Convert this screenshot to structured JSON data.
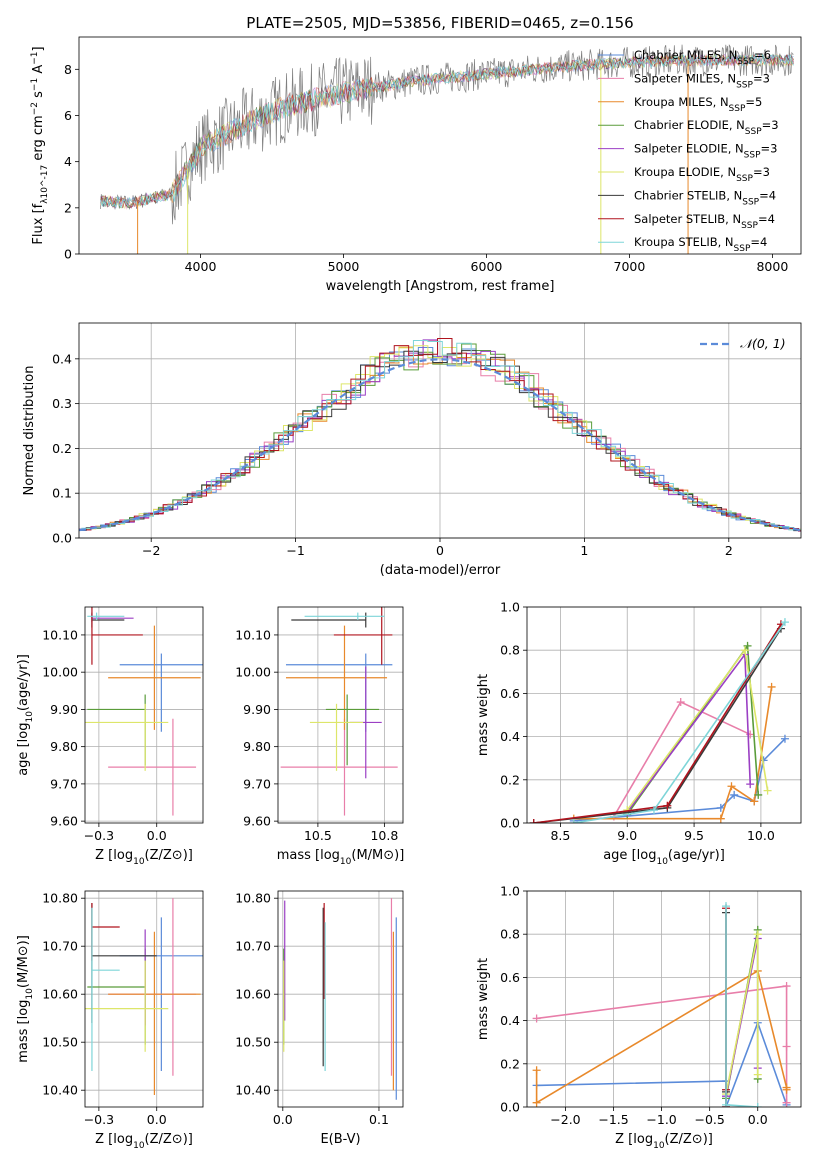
{
  "title": "PLATE=2505, MJD=53856, FIBERID=0465, z=0.156",
  "colors": {
    "Chabrier MILES": "#5b8bd9",
    "Salpeter MILES": "#e87ea9",
    "Kroupa MILES": "#e8892b",
    "Chabrier ELODIE": "#5a9c3a",
    "Salpeter ELODIE": "#9b3fc4",
    "Kroupa ELODIE": "#dde66a",
    "Chabrier STELIB": "#3a3a3a",
    "Salpeter STELIB": "#b0141e",
    "Kroupa STELIB": "#7ed5d8",
    "data": "#7f7f7f",
    "normal": "#5b8bd9"
  },
  "chart_data": [
    {
      "id": "spectrum",
      "type": "line",
      "xlabel": "wavelength [Angstrom, rest frame]",
      "ylabel": "Flux [f_λ10^-17 erg cm^-2 s^-1 A^-1]",
      "xlim": [
        3150,
        8200
      ],
      "ylim": [
        0,
        9.4
      ],
      "xticks": [
        4000,
        5000,
        6000,
        7000,
        8000
      ],
      "yticks": [
        0,
        2,
        4,
        6,
        8
      ],
      "legend_position": "top-right",
      "series": [
        {
          "name": "Chabrier MILES",
          "nssp": "6"
        },
        {
          "name": "Salpeter MILES",
          "nssp": "3"
        },
        {
          "name": "Kroupa MILES",
          "nssp": "5"
        },
        {
          "name": "Chabrier ELODIE",
          "nssp": "3"
        },
        {
          "name": "Salpeter ELODIE",
          "nssp": "3"
        },
        {
          "name": "Kroupa ELODIE",
          "nssp": "3"
        },
        {
          "name": "Chabrier STELIB",
          "nssp": "4"
        },
        {
          "name": "Salpeter STELIB",
          "nssp": "4"
        },
        {
          "name": "Kroupa STELIB",
          "nssp": "4"
        }
      ],
      "continuum": {
        "x": [
          3300,
          3500,
          3800,
          4000,
          4300,
          4600,
          5000,
          5500,
          6000,
          6500,
          7000,
          7500,
          8000,
          8200
        ],
        "y": [
          2.3,
          2.2,
          2.6,
          4.6,
          5.6,
          6.4,
          7.0,
          7.5,
          7.8,
          8.1,
          8.3,
          8.4,
          8.4,
          8.4
        ]
      }
    },
    {
      "id": "residuals",
      "type": "line",
      "xlabel": "(data-model)/error",
      "ylabel": "Normed distribution",
      "xlim": [
        -2.5,
        2.5
      ],
      "ylim": [
        0,
        0.48
      ],
      "xticks": [
        -2,
        -1,
        0,
        1,
        2
      ],
      "yticks": [
        0.0,
        0.1,
        0.2,
        0.3,
        0.4
      ],
      "legend": "𝒩(0, 1)",
      "legend_position": "top-right",
      "grid": true
    },
    {
      "id": "age-Z",
      "type": "scatter",
      "xlabel": "Z [log10(Z/Z⊙)]",
      "ylabel": "age  [log10(age/yr)]",
      "xlim": [
        -0.31,
        0.2
      ],
      "ylim": [
        9.595,
        10.175
      ],
      "xticks": [
        -0.25,
        0.0
      ],
      "yticks": [
        9.6,
        9.7,
        9.8,
        9.9,
        10.0,
        10.1
      ],
      "grid": true,
      "points": [
        {
          "series": "Chabrier MILES",
          "x": 0.02,
          "y": 10.02,
          "xerr": [
            0.18,
            0.18
          ],
          "yerr": [
            0.18,
            0.03
          ]
        },
        {
          "series": "Salpeter MILES",
          "x": 0.07,
          "y": 9.745,
          "xerr": [
            0.28,
            0.1
          ],
          "yerr": [
            0.13,
            0.13
          ]
        },
        {
          "series": "Kroupa MILES",
          "x": -0.01,
          "y": 9.985,
          "xerr": [
            0.2,
            0.2
          ],
          "yerr": [
            0.14,
            0.14
          ]
        },
        {
          "series": "Chabrier ELODIE",
          "x": -0.05,
          "y": 9.9,
          "xerr": [
            0.25,
            0.0
          ],
          "yerr": [
            0.15,
            0.04
          ]
        },
        {
          "series": "Salpeter ELODIE",
          "x": -0.28,
          "y": 10.145,
          "xerr": [
            0.0,
            0.18
          ],
          "yerr": [
            0.01,
            0.01
          ]
        },
        {
          "series": "Kroupa ELODIE",
          "x": -0.05,
          "y": 9.865,
          "xerr": [
            0.26,
            0.1
          ],
          "yerr": [
            0.13,
            0.05
          ]
        },
        {
          "series": "Chabrier STELIB",
          "x": -0.28,
          "y": 10.14,
          "xerr": [
            0.0,
            0.14
          ],
          "yerr": [
            0.02,
            0.02
          ]
        },
        {
          "series": "Salpeter STELIB",
          "x": -0.28,
          "y": 10.1,
          "xerr": [
            0.0,
            0.22
          ],
          "yerr": [
            0.08,
            0.08
          ]
        },
        {
          "series": "Kroupa STELIB",
          "x": -0.26,
          "y": 10.15,
          "xerr": [
            0.04,
            0.12
          ],
          "yerr": [
            0.01,
            0.01
          ]
        }
      ]
    },
    {
      "id": "age-mass",
      "type": "scatter",
      "xlabel": "mass [log10(M/M⊙)]",
      "xlim": [
        10.35,
        10.82
      ],
      "ylim": [
        9.595,
        10.175
      ],
      "xticks": [
        10.5,
        10.75
      ],
      "yticks": [
        9.6,
        9.7,
        9.8,
        9.9,
        10.0,
        10.1
      ],
      "grid": true,
      "points": [
        {
          "series": "Chabrier MILES",
          "x": 10.68,
          "y": 10.02,
          "xerr": [
            0.3,
            0.1
          ],
          "yerr": [
            0.18,
            0.03
          ]
        },
        {
          "series": "Salpeter MILES",
          "x": 10.6,
          "y": 9.745,
          "xerr": [
            0.24,
            0.2
          ],
          "yerr": [
            0.13,
            0.13
          ]
        },
        {
          "series": "Kroupa MILES",
          "x": 10.6,
          "y": 9.985,
          "xerr": [
            0.22,
            0.16
          ],
          "yerr": [
            0.14,
            0.14
          ]
        },
        {
          "series": "Chabrier ELODIE",
          "x": 10.61,
          "y": 9.9,
          "xerr": [
            0.08,
            0.12
          ],
          "yerr": [
            0.15,
            0.04
          ]
        },
        {
          "series": "Salpeter ELODIE",
          "x": 10.68,
          "y": 9.865,
          "xerr": [
            0.06,
            0.06
          ],
          "yerr": [
            0.15,
            0.15
          ]
        },
        {
          "series": "Kroupa ELODIE",
          "x": 10.57,
          "y": 9.865,
          "xerr": [
            0.1,
            0.1
          ],
          "yerr": [
            0.13,
            0.05
          ]
        },
        {
          "series": "Chabrier STELIB",
          "x": 10.68,
          "y": 10.14,
          "xerr": [
            0.28,
            0.0
          ],
          "yerr": [
            0.02,
            0.02
          ]
        },
        {
          "series": "Salpeter STELIB",
          "x": 10.74,
          "y": 10.1,
          "xerr": [
            0.18,
            0.04
          ],
          "yerr": [
            0.08,
            0.08
          ]
        },
        {
          "series": "Kroupa STELIB",
          "x": 10.65,
          "y": 10.15,
          "xerr": [
            0.2,
            0.1
          ],
          "yerr": [
            0.01,
            0.01
          ]
        }
      ]
    },
    {
      "id": "weight-age",
      "type": "line",
      "xlabel": "age  [log10(age/yr)]",
      "ylabel": "mass weight",
      "xlim": [
        8.25,
        10.3
      ],
      "ylim": [
        0,
        1.0
      ],
      "xticks": [
        8.5,
        9.0,
        9.5,
        10.0
      ],
      "yticks": [
        0.0,
        0.2,
        0.4,
        0.6,
        0.8,
        1.0
      ],
      "grid": true,
      "series": [
        {
          "name": "Chabrier MILES",
          "x": [
            8.6,
            9.7,
            9.8,
            9.95,
            10.02,
            10.18
          ],
          "y": [
            0.01,
            0.07,
            0.13,
            0.1,
            0.29,
            0.39
          ]
        },
        {
          "name": "Salpeter MILES",
          "x": [
            8.9,
            9.4,
            9.92
          ],
          "y": [
            0.03,
            0.56,
            0.41
          ]
        },
        {
          "name": "Kroupa MILES",
          "x": [
            8.6,
            9.7,
            9.78,
            9.95,
            10.08
          ],
          "y": [
            0.02,
            0.02,
            0.17,
            0.1,
            0.63
          ]
        },
        {
          "name": "Chabrier ELODIE",
          "x": [
            9.0,
            9.9,
            9.98
          ],
          "y": [
            0.04,
            0.82,
            0.13
          ]
        },
        {
          "name": "Salpeter ELODIE",
          "x": [
            9.0,
            9.88,
            9.92
          ],
          "y": [
            0.05,
            0.78,
            0.18
          ]
        },
        {
          "name": "Kroupa ELODIE",
          "x": [
            9.0,
            9.88,
            10.05
          ],
          "y": [
            0.06,
            0.8,
            0.15
          ]
        },
        {
          "name": "Chabrier STELIB",
          "x": [
            8.3,
            9.3,
            10.15
          ],
          "y": [
            0.0,
            0.07,
            0.9
          ]
        },
        {
          "name": "Salpeter STELIB",
          "x": [
            8.3,
            9.3,
            10.15
          ],
          "y": [
            0.0,
            0.08,
            0.92
          ]
        },
        {
          "name": "Kroupa STELIB",
          "x": [
            8.6,
            9.2,
            10.18
          ],
          "y": [
            0.0,
            0.06,
            0.93
          ]
        }
      ]
    },
    {
      "id": "mass-Z",
      "type": "scatter",
      "xlabel": "Z [log10(Z/Z⊙)]",
      "ylabel": "mass [log10(M/M⊙)]",
      "xlim": [
        -0.31,
        0.2
      ],
      "ylim": [
        10.365,
        10.815
      ],
      "xticks": [
        -0.25,
        0.0
      ],
      "yticks": [
        10.4,
        10.5,
        10.6,
        10.7,
        10.8
      ],
      "grid": true,
      "points": [
        {
          "series": "Chabrier MILES",
          "x": 0.02,
          "y": 10.68,
          "xerr": [
            0.18,
            0.18
          ],
          "yerr": [
            0.24,
            0.08
          ]
        },
        {
          "series": "Salpeter MILES",
          "x": 0.07,
          "y": 10.6,
          "xerr": [
            0.28,
            0.1
          ],
          "yerr": [
            0.17,
            0.2
          ]
        },
        {
          "series": "Kroupa MILES",
          "x": -0.01,
          "y": 10.6,
          "xerr": [
            0.2,
            0.2
          ],
          "yerr": [
            0.21,
            0.13
          ]
        },
        {
          "series": "Chabrier ELODIE",
          "x": -0.05,
          "y": 10.615,
          "xerr": [
            0.25,
            0.0
          ],
          "yerr": [
            0.12,
            0.08
          ]
        },
        {
          "series": "Salpeter ELODIE",
          "x": -0.05,
          "y": 10.685,
          "xerr": [
            0.0,
            0.0
          ],
          "yerr": [
            0.15,
            0.05
          ]
        },
        {
          "series": "Kroupa ELODIE",
          "x": -0.05,
          "y": 10.57,
          "xerr": [
            0.26,
            0.1
          ],
          "yerr": [
            0.09,
            0.1
          ]
        },
        {
          "series": "Chabrier STELIB",
          "x": -0.28,
          "y": 10.68,
          "xerr": [
            0.0,
            0.28
          ],
          "yerr": [
            0.14,
            0.11
          ]
        },
        {
          "series": "Salpeter STELIB",
          "x": -0.28,
          "y": 10.74,
          "xerr": [
            0.0,
            0.12
          ],
          "yerr": [
            0.07,
            0.05
          ]
        },
        {
          "series": "Kroupa STELIB",
          "x": -0.28,
          "y": 10.65,
          "xerr": [
            0.0,
            0.12
          ],
          "yerr": [
            0.21,
            0.13
          ]
        }
      ]
    },
    {
      "id": "mass-ebv",
      "type": "scatter",
      "xlabel": "E(B-V)",
      "xlim": [
        -0.005,
        0.125
      ],
      "ylim": [
        10.365,
        10.815
      ],
      "xticks": [
        0.0,
        0.1
      ],
      "yticks": [
        10.4,
        10.5,
        10.6,
        10.7,
        10.8
      ],
      "grid": true,
      "points": [
        {
          "series": "Chabrier MILES",
          "x": 0.118,
          "y": 10.68,
          "yerr": [
            0.3,
            0.08
          ]
        },
        {
          "series": "Salpeter MILES",
          "x": 0.113,
          "y": 10.6,
          "yerr": [
            0.17,
            0.2
          ]
        },
        {
          "series": "Kroupa MILES",
          "x": 0.115,
          "y": 10.6,
          "yerr": [
            0.2,
            0.13
          ]
        },
        {
          "series": "Chabrier ELODIE",
          "x": 0.001,
          "y": 10.615,
          "yerr": [
            0.12,
            0.08
          ]
        },
        {
          "series": "Salpeter ELODIE",
          "x": 0.002,
          "y": 10.685,
          "yerr": [
            0.14,
            0.11
          ]
        },
        {
          "series": "Kroupa ELODIE",
          "x": 0.001,
          "y": 10.57,
          "yerr": [
            0.09,
            0.1
          ]
        },
        {
          "series": "Chabrier STELIB",
          "x": 0.042,
          "y": 10.68,
          "yerr": [
            0.23,
            0.1
          ]
        },
        {
          "series": "Salpeter STELIB",
          "x": 0.043,
          "y": 10.74,
          "yerr": [
            0.15,
            0.05
          ]
        },
        {
          "series": "Kroupa STELIB",
          "x": 0.044,
          "y": 10.65,
          "yerr": [
            0.21,
            0.1
          ]
        }
      ]
    },
    {
      "id": "weight-Z",
      "type": "line",
      "xlabel": "Z [log10(Z/Z⊙)]",
      "ylabel": "mass weight",
      "xlim": [
        -2.4,
        0.45
      ],
      "ylim": [
        0,
        1.0
      ],
      "xticks": [
        -2.0,
        -1.5,
        -1.0,
        -0.5,
        0.0
      ],
      "yticks": [
        0.0,
        0.2,
        0.4,
        0.6,
        0.8,
        1.0
      ],
      "grid": true,
      "series": [
        {
          "name": "Chabrier MILES",
          "x": [
            -2.3,
            -0.33,
            -0.33,
            0.0,
            0.3
          ],
          "y": [
            0.1,
            0.12,
            0.0,
            0.39,
            0.01
          ]
        },
        {
          "name": "Salpeter MILES",
          "x": [
            -2.3,
            0.3,
            0.3,
            0.3
          ],
          "y": [
            0.41,
            0.56,
            0.28,
            0.02
          ]
        },
        {
          "name": "Kroupa MILES",
          "x": [
            -2.3,
            -2.3,
            0.0,
            0.3,
            0.3
          ],
          "y": [
            0.17,
            0.02,
            0.63,
            0.09,
            0.08
          ]
        },
        {
          "name": "Chabrier ELODIE",
          "x": [
            -0.33,
            0.0,
            0.0
          ],
          "y": [
            0.04,
            0.82,
            0.13
          ]
        },
        {
          "name": "Salpeter ELODIE",
          "x": [
            -0.33,
            0.0,
            0.0
          ],
          "y": [
            0.05,
            0.78,
            0.18
          ]
        },
        {
          "name": "Kroupa ELODIE",
          "x": [
            -0.33,
            0.0,
            0.0
          ],
          "y": [
            0.06,
            0.8,
            0.15
          ]
        },
        {
          "name": "Chabrier STELIB",
          "x": [
            -0.33,
            -0.33,
            -0.33
          ],
          "y": [
            0.9,
            0.07,
            0.0
          ]
        },
        {
          "name": "Salpeter STELIB",
          "x": [
            -0.33,
            -0.33,
            -0.33
          ],
          "y": [
            0.92,
            0.08,
            0.0
          ]
        },
        {
          "name": "Kroupa STELIB",
          "x": [
            -0.33,
            -0.33,
            0.0
          ],
          "y": [
            0.93,
            0.01,
            0.0
          ]
        }
      ]
    }
  ]
}
